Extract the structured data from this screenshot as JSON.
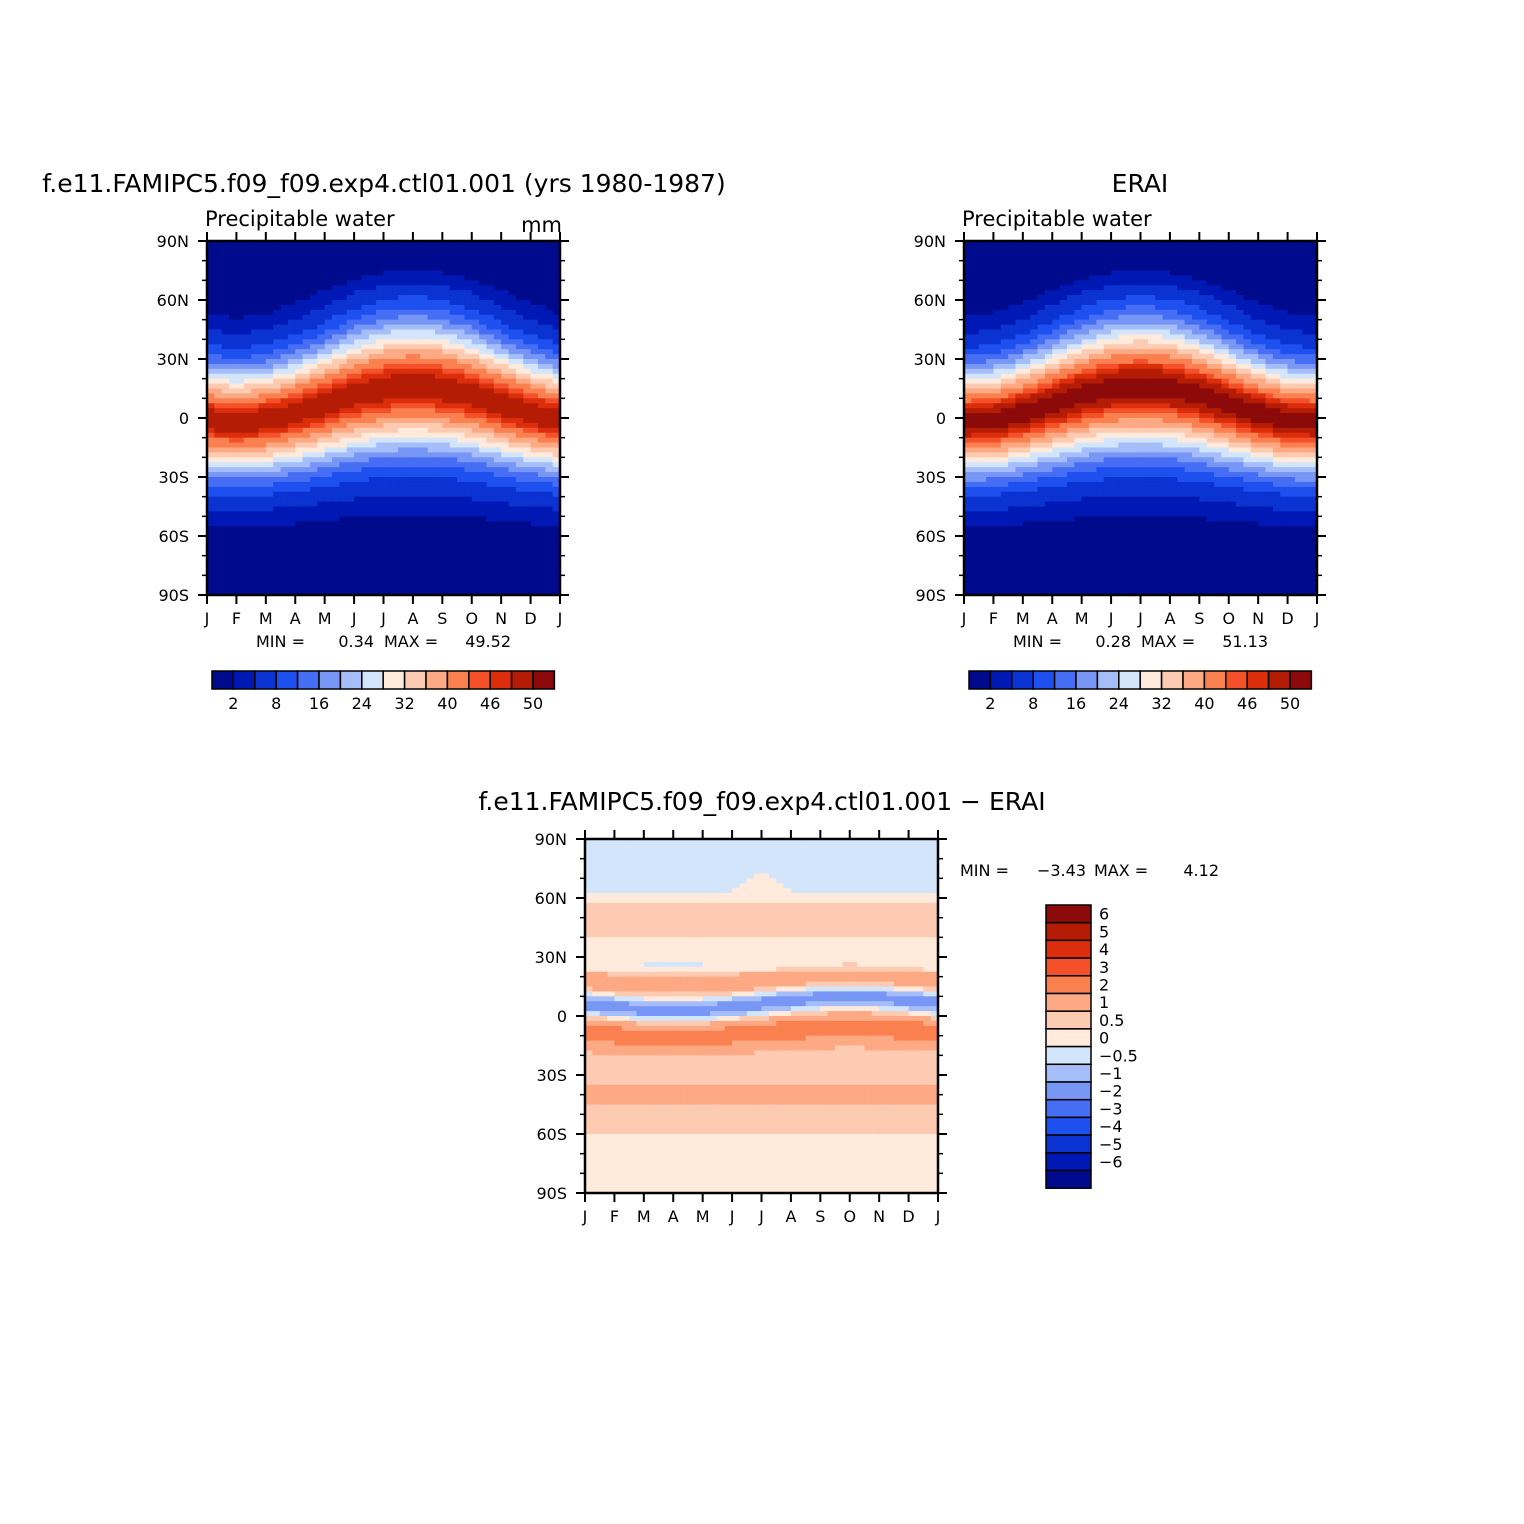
{
  "chart_data": [
    {
      "type": "heatmap",
      "title": "f.e11.FAMIPC5.f09_f09.exp4.ctl01.001 (yrs 1980-1987)",
      "left_label": "Precipitable water",
      "units": "mm",
      "x_ticks": [
        "J",
        "F",
        "M",
        "A",
        "M",
        "J",
        "J",
        "A",
        "S",
        "O",
        "N",
        "D",
        "J"
      ],
      "y_ticks": [
        "90N",
        "60N",
        "30N",
        "0",
        "30S",
        "60S",
        "90S"
      ],
      "min_text": "MIN =",
      "min_value": "0.34",
      "max_text": "MAX =",
      "max_value": "49.52",
      "colorbar_labels": [
        "2",
        "8",
        "16",
        "24",
        "32",
        "40",
        "46",
        "50"
      ],
      "field": "pw",
      "itcz_peak_month": 7,
      "peak": 49.52
    },
    {
      "type": "heatmap",
      "title": "ERAI",
      "left_label": "Precipitable water",
      "units": "",
      "x_ticks": [
        "J",
        "F",
        "M",
        "A",
        "M",
        "J",
        "J",
        "A",
        "S",
        "O",
        "N",
        "D",
        "J"
      ],
      "y_ticks": [
        "90N",
        "60N",
        "30N",
        "0",
        "30S",
        "60S",
        "90S"
      ],
      "min_text": "MIN =",
      "min_value": "0.28",
      "max_text": "MAX =",
      "max_value": "51.13",
      "colorbar_labels": [
        "2",
        "8",
        "16",
        "24",
        "32",
        "40",
        "46",
        "50"
      ],
      "field": "pw",
      "itcz_peak_month": 6,
      "peak": 51.13
    },
    {
      "type": "heatmap",
      "title": "f.e11.FAMIPC5.f09_f09.exp4.ctl01.001 − ERAI",
      "x_ticks": [
        "J",
        "F",
        "M",
        "A",
        "M",
        "J",
        "J",
        "A",
        "S",
        "O",
        "N",
        "D",
        "J"
      ],
      "y_ticks": [
        "90N",
        "60N",
        "30N",
        "0",
        "30S",
        "60S",
        "90S"
      ],
      "min_text": "MIN =",
      "min_value": "−3.43",
      "max_text": "MAX =",
      "max_value": "4.12",
      "colorbar_labels": [
        "6",
        "5",
        "4",
        "3",
        "2",
        "1",
        "0.5",
        "0",
        "−0.5",
        "−1",
        "−2",
        "−3",
        "−4",
        "−5",
        "−6"
      ],
      "field": "diff"
    }
  ],
  "palettes": {
    "pw": [
      "#000a8c",
      "#0019b4",
      "#0a33d2",
      "#1e50f0",
      "#466ef5",
      "#7896f5",
      "#a5bdf8",
      "#d2e5fa",
      "#ffeadc",
      "#fdcbb1",
      "#fca984",
      "#fa8050",
      "#f4502a",
      "#dc2e0a",
      "#b41c05",
      "#8c0a0a"
    ],
    "diff": [
      "#000a8c",
      "#0019b4",
      "#0a33d2",
      "#1e50f0",
      "#466ef5",
      "#7896f5",
      "#a5bdf8",
      "#d2e5fa",
      "#ffeadc",
      "#fdcbb1",
      "#fca984",
      "#fa8050",
      "#f4502a",
      "#dc2e0a",
      "#b41c05",
      "#8c0a0a"
    ]
  }
}
